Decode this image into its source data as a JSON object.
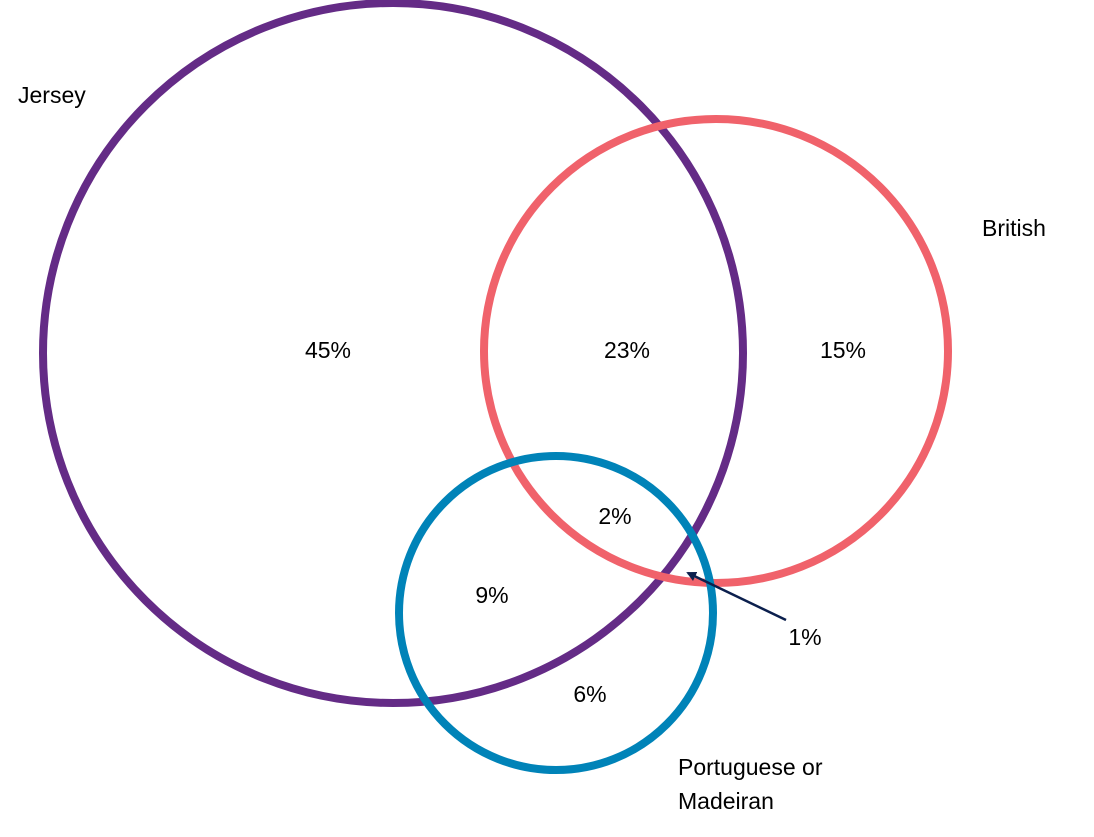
{
  "sets": {
    "jersey": {
      "label": "Jersey",
      "color": "#642b86"
    },
    "british": {
      "label": "British",
      "color": "#f0626b"
    },
    "portuguese": {
      "label_line1": "Portuguese or",
      "label_line2": "Madeiran",
      "color": "#0083b8"
    }
  },
  "regions": {
    "jersey_only": "45%",
    "jersey_british": "23%",
    "british_only": "15%",
    "all_three": "2%",
    "jersey_portuguese": "9%",
    "portuguese_only": "6%",
    "british_portuguese": "1%"
  },
  "pointer_color": "#0b1f4d"
}
